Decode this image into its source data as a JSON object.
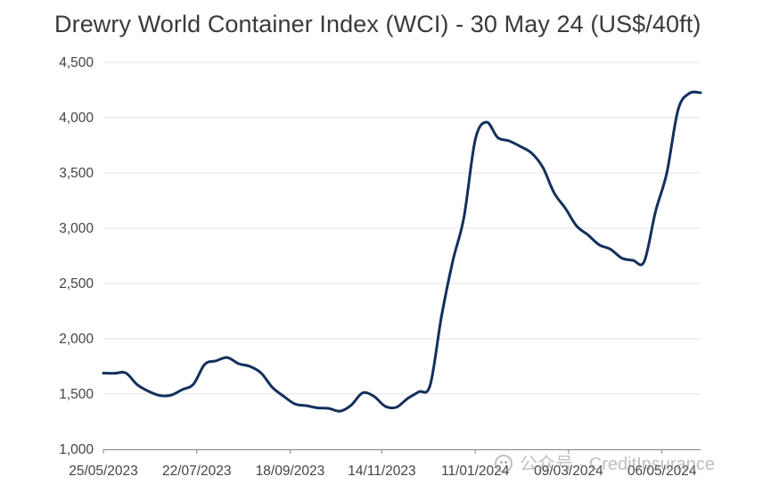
{
  "title": "Drewry World Container Index (WCI) - 30 May 24 (US$/40ft)",
  "watermark": "公众号 · CreditInsurance",
  "colors": {
    "line": "#13305c",
    "grid": "#e3e3e3",
    "axis": "#888888",
    "text": "#444444"
  },
  "chart_data": {
    "type": "line",
    "title": "Drewry World Container Index (WCI) - 30 May 24 (US$/40ft)",
    "xlabel": "",
    "ylabel": "",
    "ylim": [
      1000,
      4500
    ],
    "yticks": [
      1000,
      1500,
      2000,
      2500,
      3000,
      3500,
      4000,
      4500
    ],
    "ytick_labels": [
      "1,000",
      "1,500",
      "2,000",
      "2,500",
      "3,000",
      "3,500",
      "4,000",
      "4,500"
    ],
    "xtick_labels": [
      "25/05/2023",
      "22/07/2023",
      "18/09/2023",
      "14/11/2023",
      "11/01/2024",
      "09/03/2024",
      "06/05/2024"
    ],
    "grid": true,
    "legend": "none",
    "x": [
      "25/05/2023",
      "01/06/2023",
      "08/06/2023",
      "15/06/2023",
      "22/06/2023",
      "29/06/2023",
      "06/07/2023",
      "13/07/2023",
      "20/07/2023",
      "27/07/2023",
      "03/08/2023",
      "10/08/2023",
      "17/08/2023",
      "24/08/2023",
      "31/08/2023",
      "07/09/2023",
      "14/09/2023",
      "21/09/2023",
      "28/09/2023",
      "05/10/2023",
      "12/10/2023",
      "19/10/2023",
      "26/10/2023",
      "02/11/2023",
      "09/11/2023",
      "16/11/2023",
      "23/11/2023",
      "30/11/2023",
      "07/12/2023",
      "14/12/2023",
      "21/12/2023",
      "28/12/2023",
      "04/01/2024",
      "11/01/2024",
      "18/01/2024",
      "25/01/2024",
      "01/02/2024",
      "08/02/2024",
      "15/02/2024",
      "22/02/2024",
      "29/02/2024",
      "07/03/2024",
      "14/03/2024",
      "21/03/2024",
      "28/03/2024",
      "04/04/2024",
      "11/04/2024",
      "18/04/2024",
      "25/04/2024",
      "02/05/2024",
      "09/05/2024",
      "16/05/2024",
      "23/05/2024",
      "30/05/2024"
    ],
    "series": [
      {
        "values": [
          1689,
          1688,
          1690,
          1585,
          1525,
          1487,
          1490,
          1540,
          1590,
          1770,
          1800,
          1830,
          1775,
          1750,
          1690,
          1560,
          1480,
          1410,
          1395,
          1375,
          1370,
          1345,
          1400,
          1510,
          1480,
          1390,
          1380,
          1460,
          1520,
          1580,
          2200,
          2700,
          3100,
          3800,
          3960,
          3820,
          3790,
          3740,
          3680,
          3550,
          3320,
          3180,
          3020,
          2940,
          2850,
          2810,
          2730,
          2710,
          2700,
          3150,
          3500,
          4070,
          4220,
          4226
        ]
      }
    ]
  }
}
